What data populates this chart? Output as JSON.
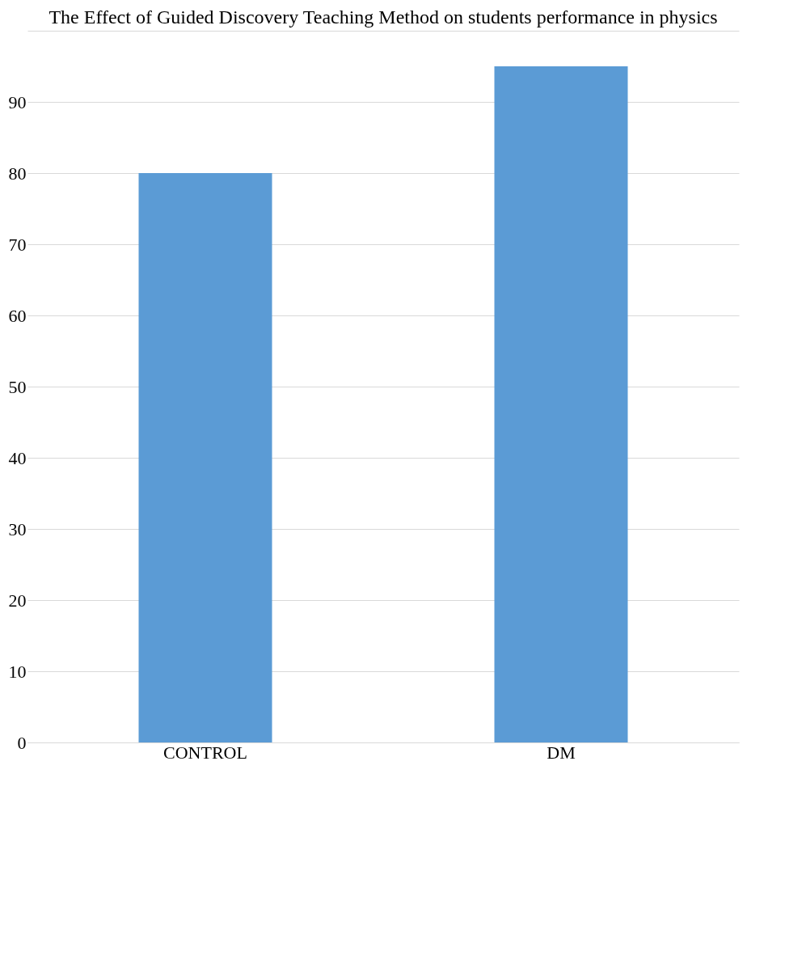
{
  "chart_data": {
    "type": "bar",
    "title": "The Effect of Guided Discovery Teaching Method on students performance in physics",
    "categories": [
      "CONTROL",
      "DM"
    ],
    "series": [
      {
        "color": "#5b9bd5",
        "values": [
          80,
          95
        ]
      }
    ],
    "ylim": [
      0,
      100
    ],
    "yticks": [
      0,
      10,
      20,
      30,
      40,
      50,
      60,
      70,
      80,
      90,
      {
        "value": 100,
        "label": null
      }
    ],
    "grid": "y",
    "legend": false
  }
}
